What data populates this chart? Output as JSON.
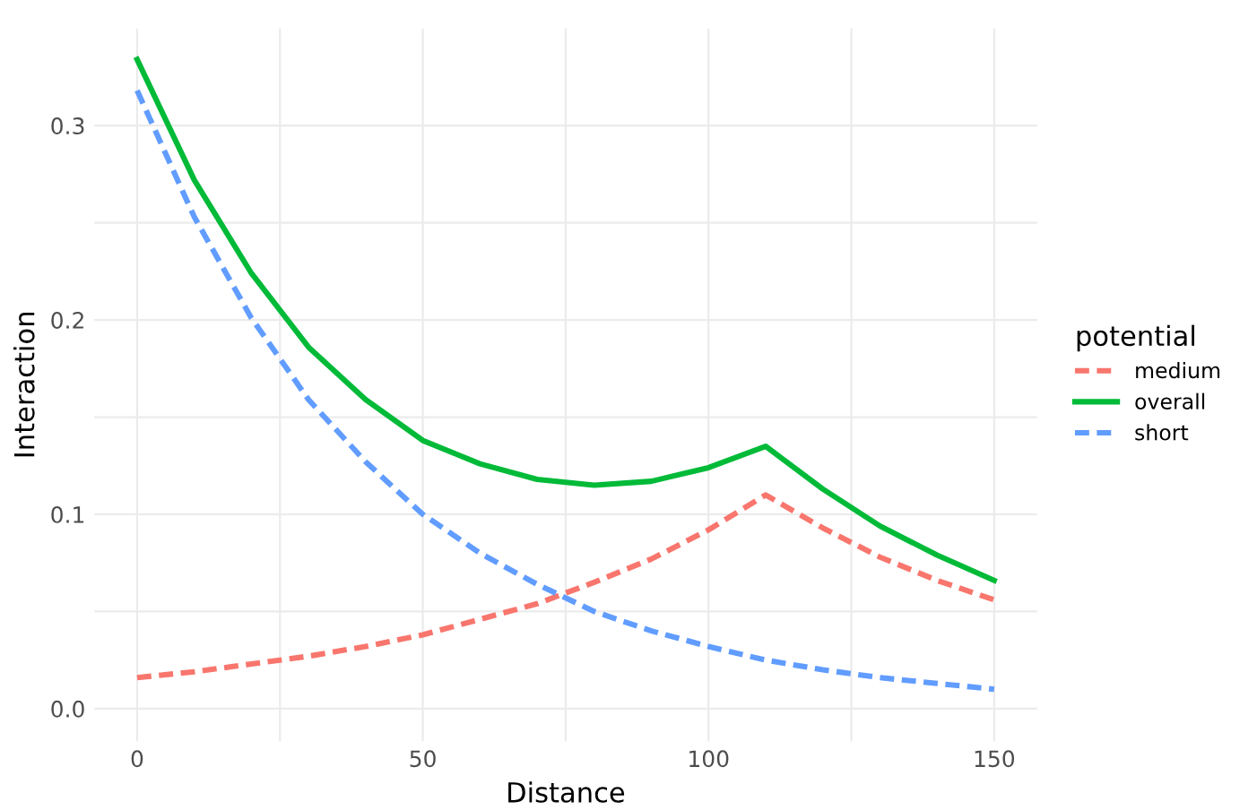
{
  "chart_data": {
    "type": "line",
    "xlabel": "Distance",
    "ylabel": "Interaction",
    "legend_title": "potential",
    "legend": "right",
    "grid": true,
    "xlim": [
      -7.5,
      157.5
    ],
    "ylim": [
      -0.0167,
      0.35
    ],
    "xticks": [
      0,
      {
        "value": 25,
        "label": null
      },
      50,
      {
        "value": 75,
        "label": null
      },
      100,
      {
        "value": 125,
        "label": null
      },
      150
    ],
    "yticks": [
      {
        "value": 0,
        "label": "0.0"
      },
      {
        "value": 0.05,
        "label": null
      },
      0.1,
      {
        "value": 0.15,
        "label": null
      },
      0.2,
      {
        "value": 0.25,
        "label": null
      },
      0.3
    ],
    "x": [
      0,
      10,
      20,
      30,
      40,
      50,
      60,
      70,
      80,
      90,
      100,
      110,
      120,
      130,
      140,
      150
    ],
    "series": [
      {
        "name": "medium",
        "color": "#f8766d",
        "line_style": "dashed",
        "values": [
          0.016,
          0.019,
          0.023,
          0.027,
          0.032,
          0.038,
          0.046,
          0.054,
          0.065,
          0.077,
          0.092,
          0.11,
          0.093,
          0.078,
          0.066,
          0.056
        ]
      },
      {
        "name": "overall",
        "color": "#00ba38",
        "line_style": "solid",
        "values": [
          0.334,
          0.272,
          0.224,
          0.186,
          0.159,
          0.138,
          0.126,
          0.118,
          0.115,
          0.117,
          0.124,
          0.135,
          0.113,
          0.094,
          0.079,
          0.066
        ]
      },
      {
        "name": "short",
        "color": "#619cff",
        "line_style": "dashed",
        "values": [
          0.318,
          0.253,
          0.201,
          0.159,
          0.127,
          0.1,
          0.08,
          0.064,
          0.05,
          0.04,
          0.032,
          0.025,
          0.02,
          0.016,
          0.013,
          0.01
        ]
      }
    ]
  }
}
